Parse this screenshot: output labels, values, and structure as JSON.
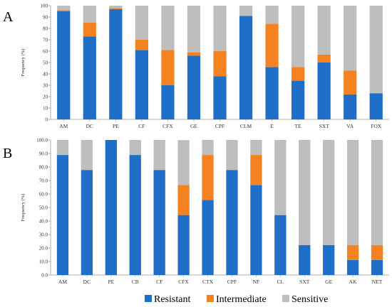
{
  "legend": {
    "items": [
      {
        "label": "Resistant",
        "color": "#1F6FC8"
      },
      {
        "label": "Intermediate",
        "color": "#F58220"
      },
      {
        "label": "Sensitive",
        "color": "#BEBEBE"
      }
    ]
  },
  "chart_data": [
    {
      "type": "bar",
      "panel_label": "A",
      "stacked": true,
      "ylabel": "Frequency (%)",
      "ylim": [
        0,
        100
      ],
      "yticks": [
        "0",
        "10",
        "20",
        "30",
        "40",
        "50",
        "60",
        "70",
        "80",
        "90",
        "100"
      ],
      "categories": [
        "AM",
        "DC",
        "PE",
        "CF",
        "CFX",
        "GE",
        "CPF",
        "CLM",
        "E",
        "TE",
        "SXT",
        "VA",
        "FOX"
      ],
      "series": [
        {
          "name": "Resistant",
          "color": "#1F6FC8",
          "values": [
            95,
            73,
            97,
            61,
            30,
            56,
            38,
            91,
            46,
            34,
            50,
            22,
            23
          ]
        },
        {
          "name": "Intermediate",
          "color": "#F58220",
          "values": [
            1,
            12,
            1,
            9,
            31,
            3,
            22,
            0,
            38,
            12,
            7,
            21,
            0
          ]
        },
        {
          "name": "Sensitive",
          "color": "#BEBEBE",
          "values": [
            4,
            15,
            2,
            30,
            39,
            41,
            40,
            9,
            16,
            54,
            43,
            57,
            77
          ]
        }
      ],
      "grid": false
    },
    {
      "type": "bar",
      "panel_label": "B",
      "stacked": true,
      "ylabel": "Frequency (%)",
      "ylim": [
        0,
        100
      ],
      "yticks": [
        "0.0",
        "10.0",
        "20.0",
        "30.0",
        "40.0",
        "50.0",
        "60.0",
        "70.0",
        "80.0",
        "90.0",
        "100.0"
      ],
      "categories": [
        "AM",
        "DC",
        "PE",
        "CB",
        "CF",
        "CFX",
        "CTX",
        "CPF",
        "NF",
        "CL",
        "SXT",
        "GE",
        "AK",
        "NET"
      ],
      "series": [
        {
          "name": "Resistant",
          "color": "#1F6FC8",
          "values": [
            88.9,
            77.8,
            100,
            88.9,
            77.8,
            44.4,
            55.6,
            77.8,
            66.7,
            44.4,
            22.2,
            22.2,
            11.1,
            11.1
          ]
        },
        {
          "name": "Intermediate",
          "color": "#F58220",
          "values": [
            0,
            0,
            0,
            0,
            0,
            22.2,
            33.3,
            0,
            22.2,
            0,
            0,
            0,
            11.1,
            11.1
          ]
        },
        {
          "name": "Sensitive",
          "color": "#BEBEBE",
          "values": [
            11.1,
            22.2,
            0,
            11.1,
            22.2,
            33.3,
            11.1,
            22.2,
            11.1,
            55.6,
            77.8,
            77.8,
            77.8,
            77.8
          ]
        }
      ],
      "grid": false
    }
  ]
}
